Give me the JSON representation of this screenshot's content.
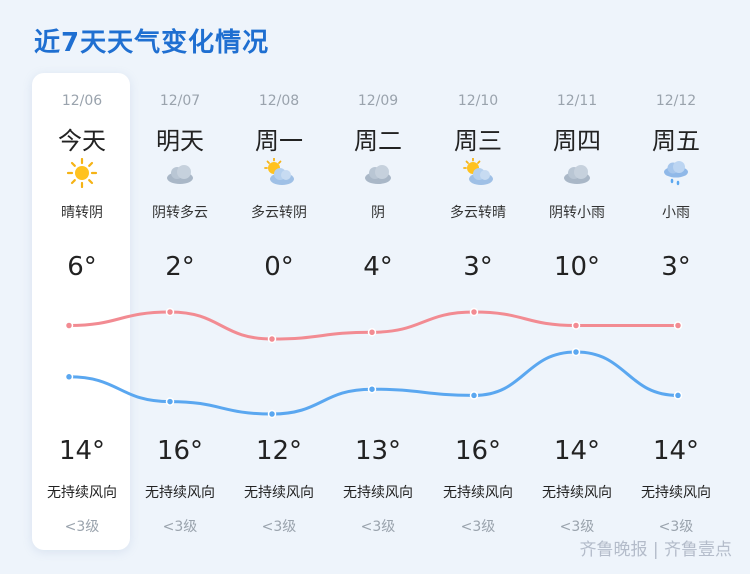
{
  "title": "近7天天气变化情况",
  "colors": {
    "high_line": "#f28b92",
    "low_line": "#5aa7f0",
    "title": "#1f6fd1"
  },
  "watermark": "齐鲁晚报 | 齐鲁壹点",
  "days": [
    {
      "date": "12/06",
      "day": "今天",
      "icon": "sun-icon",
      "condition": "晴转阴",
      "temp_top": "6°",
      "temp_bottom": "14°",
      "wind": "无持续风向",
      "level": "<3级"
    },
    {
      "date": "12/07",
      "day": "明天",
      "icon": "cloud-icon",
      "condition": "阴转多云",
      "temp_top": "2°",
      "temp_bottom": "16°",
      "wind": "无持续风向",
      "level": "<3级"
    },
    {
      "date": "12/08",
      "day": "周一",
      "icon": "partly-cloudy-icon",
      "condition": "多云转阴",
      "temp_top": "0°",
      "temp_bottom": "12°",
      "wind": "无持续风向",
      "level": "<3级"
    },
    {
      "date": "12/09",
      "day": "周二",
      "icon": "cloud-icon",
      "condition": "阴",
      "temp_top": "4°",
      "temp_bottom": "13°",
      "wind": "无持续风向",
      "level": "<3级"
    },
    {
      "date": "12/10",
      "day": "周三",
      "icon": "partly-cloudy-icon",
      "condition": "多云转晴",
      "temp_top": "3°",
      "temp_bottom": "16°",
      "wind": "无持续风向",
      "level": "<3级"
    },
    {
      "date": "12/11",
      "day": "周四",
      "icon": "cloud-icon",
      "condition": "阴转小雨",
      "temp_top": "10°",
      "temp_bottom": "14°",
      "wind": "无持续风向",
      "level": "<3级"
    },
    {
      "date": "12/12",
      "day": "周五",
      "icon": "light-rain-icon",
      "condition": "小雨",
      "temp_top": "3°",
      "temp_bottom": "14°",
      "wind": "无持续风向",
      "level": "<3级"
    }
  ],
  "chart_data": {
    "type": "line",
    "x": [
      "12/06",
      "12/07",
      "12/08",
      "12/09",
      "12/10",
      "12/11",
      "12/12"
    ],
    "series": [
      {
        "values": [
          14,
          16,
          12,
          13,
          16,
          14,
          14
        ]
      },
      {
        "values": [
          6,
          2,
          0,
          4,
          3,
          10,
          3
        ]
      }
    ]
  }
}
